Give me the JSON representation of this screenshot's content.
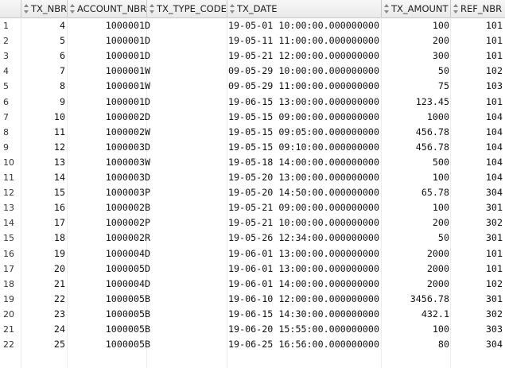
{
  "grid": {
    "columns": [
      "TX_NBR",
      "ACCOUNT_NBR",
      "TX_TYPE_CODE",
      "TX_DATE",
      "TX_AMOUNT",
      "REF_NBR"
    ],
    "rows": [
      {
        "n": "1",
        "tx_nbr": "4",
        "account_nbr": "1000001",
        "tx_type_code": "D",
        "tx_date": "19-05-01 10:00:00.000000000",
        "tx_amount": "100",
        "ref_nbr": "101"
      },
      {
        "n": "2",
        "tx_nbr": "5",
        "account_nbr": "1000001",
        "tx_type_code": "D",
        "tx_date": "19-05-11 11:00:00.000000000",
        "tx_amount": "200",
        "ref_nbr": "101"
      },
      {
        "n": "3",
        "tx_nbr": "6",
        "account_nbr": "1000001",
        "tx_type_code": "D",
        "tx_date": "19-05-21 12:00:00.000000000",
        "tx_amount": "300",
        "ref_nbr": "101"
      },
      {
        "n": "4",
        "tx_nbr": "7",
        "account_nbr": "1000001",
        "tx_type_code": "W",
        "tx_date": "09-05-29 10:00:00.000000000",
        "tx_amount": "50",
        "ref_nbr": "102"
      },
      {
        "n": "5",
        "tx_nbr": "8",
        "account_nbr": "1000001",
        "tx_type_code": "W",
        "tx_date": "09-05-29 11:00:00.000000000",
        "tx_amount": "75",
        "ref_nbr": "103"
      },
      {
        "n": "6",
        "tx_nbr": "9",
        "account_nbr": "1000001",
        "tx_type_code": "D",
        "tx_date": "19-06-15 13:00:00.000000000",
        "tx_amount": "123.45",
        "ref_nbr": "101"
      },
      {
        "n": "7",
        "tx_nbr": "10",
        "account_nbr": "1000002",
        "tx_type_code": "D",
        "tx_date": "19-05-15 09:00:00.000000000",
        "tx_amount": "1000",
        "ref_nbr": "104"
      },
      {
        "n": "8",
        "tx_nbr": "11",
        "account_nbr": "1000002",
        "tx_type_code": "W",
        "tx_date": "19-05-15 09:05:00.000000000",
        "tx_amount": "456.78",
        "ref_nbr": "104"
      },
      {
        "n": "9",
        "tx_nbr": "12",
        "account_nbr": "1000003",
        "tx_type_code": "D",
        "tx_date": "19-05-15 09:10:00.000000000",
        "tx_amount": "456.78",
        "ref_nbr": "104"
      },
      {
        "n": "10",
        "tx_nbr": "13",
        "account_nbr": "1000003",
        "tx_type_code": "W",
        "tx_date": "19-05-18 14:00:00.000000000",
        "tx_amount": "500",
        "ref_nbr": "104"
      },
      {
        "n": "11",
        "tx_nbr": "14",
        "account_nbr": "1000003",
        "tx_type_code": "D",
        "tx_date": "19-05-20 13:00:00.000000000",
        "tx_amount": "100",
        "ref_nbr": "104"
      },
      {
        "n": "12",
        "tx_nbr": "15",
        "account_nbr": "1000003",
        "tx_type_code": "P",
        "tx_date": "19-05-20 14:50:00.000000000",
        "tx_amount": "65.78",
        "ref_nbr": "304"
      },
      {
        "n": "13",
        "tx_nbr": "16",
        "account_nbr": "1000002",
        "tx_type_code": "B",
        "tx_date": "19-05-21 09:00:00.000000000",
        "tx_amount": "100",
        "ref_nbr": "301"
      },
      {
        "n": "14",
        "tx_nbr": "17",
        "account_nbr": "1000002",
        "tx_type_code": "P",
        "tx_date": "19-05-21 10:00:00.000000000",
        "tx_amount": "200",
        "ref_nbr": "302"
      },
      {
        "n": "15",
        "tx_nbr": "18",
        "account_nbr": "1000002",
        "tx_type_code": "R",
        "tx_date": "19-05-26 12:34:00.000000000",
        "tx_amount": "50",
        "ref_nbr": "301"
      },
      {
        "n": "16",
        "tx_nbr": "19",
        "account_nbr": "1000004",
        "tx_type_code": "D",
        "tx_date": "19-06-01 13:00:00.000000000",
        "tx_amount": "2000",
        "ref_nbr": "101"
      },
      {
        "n": "17",
        "tx_nbr": "20",
        "account_nbr": "1000005",
        "tx_type_code": "D",
        "tx_date": "19-06-01 13:00:00.000000000",
        "tx_amount": "2000",
        "ref_nbr": "101"
      },
      {
        "n": "18",
        "tx_nbr": "21",
        "account_nbr": "1000004",
        "tx_type_code": "D",
        "tx_date": "19-06-01 14:00:00.000000000",
        "tx_amount": "2000",
        "ref_nbr": "102"
      },
      {
        "n": "19",
        "tx_nbr": "22",
        "account_nbr": "1000005",
        "tx_type_code": "B",
        "tx_date": "19-06-10 12:00:00.000000000",
        "tx_amount": "3456.78",
        "ref_nbr": "301"
      },
      {
        "n": "20",
        "tx_nbr": "23",
        "account_nbr": "1000005",
        "tx_type_code": "B",
        "tx_date": "19-06-15 14:30:00.000000000",
        "tx_amount": "432.1",
        "ref_nbr": "302"
      },
      {
        "n": "21",
        "tx_nbr": "24",
        "account_nbr": "1000005",
        "tx_type_code": "B",
        "tx_date": "19-06-20 15:55:00.000000000",
        "tx_amount": "100",
        "ref_nbr": "303"
      },
      {
        "n": "22",
        "tx_nbr": "25",
        "account_nbr": "1000005",
        "tx_type_code": "B",
        "tx_date": "19-06-25 16:56:00.000000000",
        "tx_amount": "80",
        "ref_nbr": "304"
      }
    ]
  },
  "icons": {
    "column_header": "sort-arrows-icon"
  }
}
